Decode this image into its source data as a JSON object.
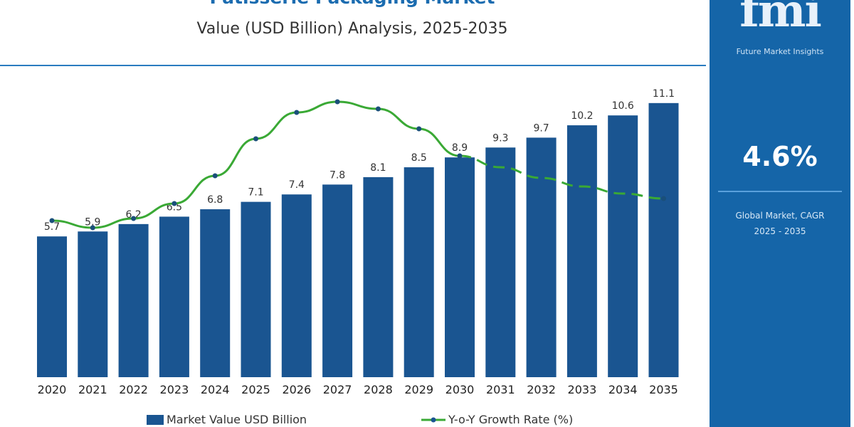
{
  "title": "Patisserie Packaging Market",
  "subtitle": "Value (USD Billion) Analysis, 2025-2035",
  "panel": {
    "logo_text": "fmi",
    "logo_caption": "Future Market Insights",
    "cagr_value": "4.6%",
    "cagr_label": "Global Market, CAGR 2025 - 2035",
    "color": "#1565a8"
  },
  "chart_data": {
    "type": "bar",
    "categories": [
      "2020",
      "2021",
      "2022",
      "2023",
      "2024",
      "2025",
      "2026",
      "2027",
      "2028",
      "2029",
      "2030",
      "2031",
      "2032",
      "2033",
      "2034",
      "2035"
    ],
    "series": [
      {
        "name": "Market Value USD Billion",
        "type": "bar",
        "color": "#1a5591",
        "values": [
          5.7,
          5.9,
          6.2,
          6.5,
          6.8,
          7.1,
          7.4,
          7.8,
          8.1,
          8.5,
          8.9,
          9.3,
          9.7,
          10.2,
          10.6,
          11.1
        ],
        "labels": [
          "5.7",
          "5.9",
          "6.2",
          "6.5",
          "6.8",
          "7.1",
          "7.4",
          "7.8",
          "8.1",
          "8.5",
          "8.9",
          "9.3",
          "9.7",
          "10.2",
          "10.6",
          "11.1"
        ]
      },
      {
        "name": "Y-o-Y Growth Rate (%)",
        "type": "line",
        "color": "#3aa935",
        "axis": "secondary (unlabeled, values estimated)",
        "values": [
          4.5,
          4.0,
          4.65,
          5.7,
          7.65,
          10.25,
          12.1,
          12.85,
          12.35,
          10.95,
          9.05,
          8.25,
          7.5,
          6.9,
          6.4,
          6.05
        ],
        "dashed_from": "2030"
      }
    ],
    "ylim": [
      0,
      12
    ],
    "grid": false,
    "legend": "bottom"
  }
}
